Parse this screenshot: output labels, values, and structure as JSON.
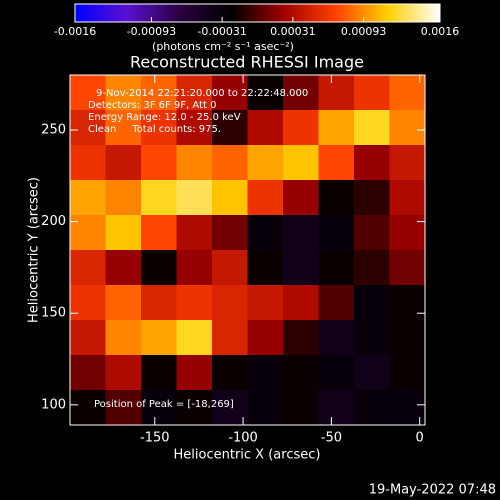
{
  "chart_data": {
    "type": "heatmap",
    "title": "Reconstructed RHESSI Image",
    "x_label": "Heliocentric X (arcsec)",
    "y_label": "Heliocentric Y (arcsec)",
    "colorbar_label": "(photons cm⁻² s⁻¹ asec⁻²)",
    "zlim": [
      -0.0016,
      0.0016
    ],
    "zticks": [
      -0.0016,
      -0.00093,
      -0.00031,
      0.00031,
      0.00093,
      0.0016
    ],
    "colormap": [
      "#0000ff",
      "#5a10d0",
      "#2a0040",
      "#000000",
      "#a00000",
      "#ff4000",
      "#ffd000",
      "#ffffff"
    ],
    "xlim": [
      -198,
      3
    ],
    "xticks": [
      -150,
      -100,
      -50,
      0
    ],
    "ylim": [
      89,
      280
    ],
    "yticks": [
      100,
      150,
      200,
      250
    ],
    "z": [
      [
        0.0007,
        0.0009,
        0.0008,
        0.0005,
        0.0002,
        -0.0002,
        0.0001,
        0.0004,
        0.0006,
        0.0008
      ],
      [
        0.0005,
        0.0008,
        0.0006,
        0.0003,
        -0.0001,
        0.0003,
        0.0006,
        0.001,
        0.0012,
        0.0009
      ],
      [
        0.0006,
        0.0004,
        0.0007,
        0.0009,
        0.0008,
        0.001,
        0.0011,
        0.0007,
        0.0002,
        0.0004
      ],
      [
        0.001,
        0.0009,
        0.0012,
        0.0013,
        0.0011,
        0.0006,
        0.0002,
        -0.0002,
        -0.0001,
        0.0003
      ],
      [
        0.0009,
        0.0011,
        0.0007,
        0.0003,
        0.0001,
        -0.0003,
        -0.0004,
        -0.0003,
        0.0,
        0.0002
      ],
      [
        0.0005,
        0.0002,
        -0.0002,
        0.0002,
        0.0004,
        -0.0002,
        -0.0004,
        -0.0002,
        -0.0001,
        0.0001
      ],
      [
        0.0006,
        0.0008,
        0.0005,
        0.0006,
        0.0005,
        0.0004,
        0.0003,
        0.0,
        -0.0003,
        -0.0002
      ],
      [
        0.0004,
        0.0009,
        0.001,
        0.0012,
        0.0005,
        0.0002,
        -0.0001,
        -0.0004,
        -0.0003,
        -0.0002
      ],
      [
        0.0001,
        0.0003,
        -0.0002,
        0.0002,
        -0.0002,
        -0.0003,
        -0.0002,
        -0.0003,
        -0.0004,
        -0.0002
      ],
      [
        -0.0002,
        0.0,
        -0.0003,
        -0.0002,
        -0.0004,
        -0.0003,
        -0.0002,
        -0.0004,
        -0.0003,
        -0.0003
      ]
    ],
    "annotations": [
      "9-Nov-2014 22:21:20.000 to 22:22:48.000",
      "Detectors: 3F 6F 9F, Att 0",
      "Energy Range: 12.0 - 25.0 keV",
      "Clean     Total counts: 975."
    ],
    "peak_label": "Position of Peak = [-18,269]",
    "timestamp": "19-May-2022 07:48"
  }
}
